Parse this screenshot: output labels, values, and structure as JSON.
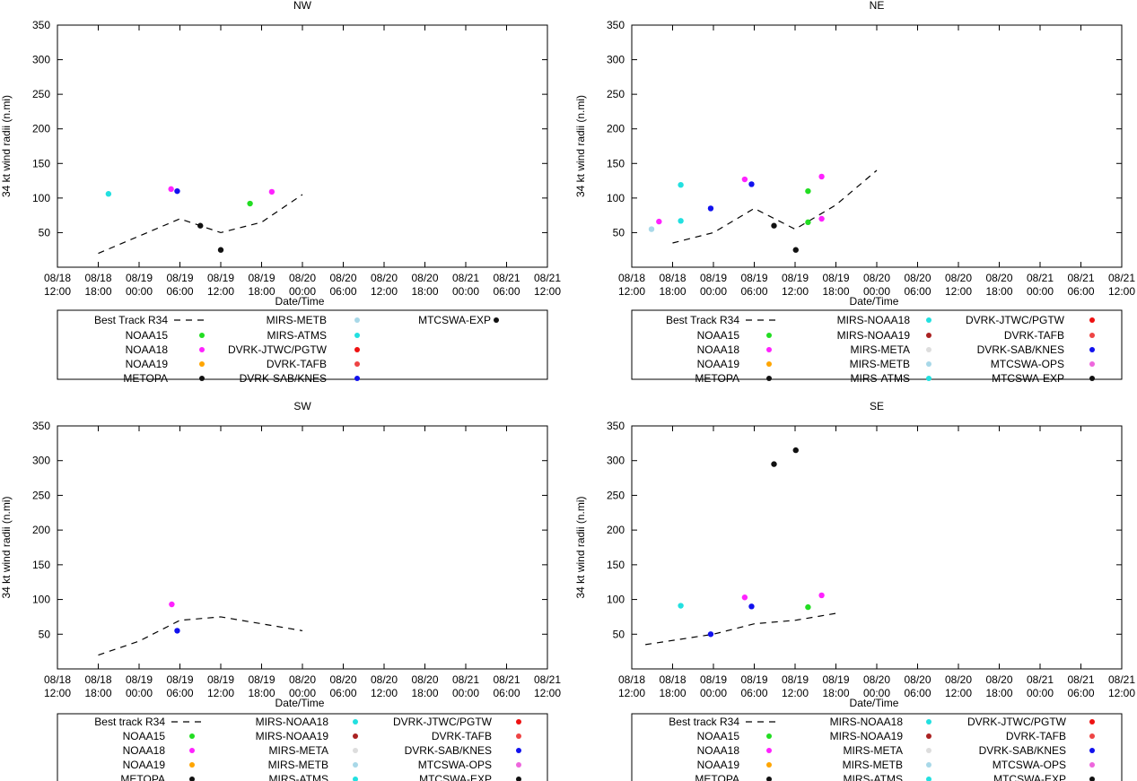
{
  "x_ticks": [
    "08/18\n12:00",
    "08/18\n18:00",
    "08/19\n00:00",
    "08/19\n06:00",
    "08/19\n12:00",
    "08/19\n18:00",
    "08/20\n00:00",
    "08/20\n06:00",
    "08/20\n12:00",
    "08/20\n18:00",
    "08/21\n00:00",
    "08/21\n06:00",
    "08/21\n12:00"
  ],
  "chart_data": [
    {
      "type": "scatter",
      "quadrant": "NW",
      "title": "NW",
      "xlabel": "Date/Time",
      "ylabel": "34 kt wind radii (n.mi)",
      "xunit": "hours after 08/18 12:00",
      "xlim": [
        0,
        72
      ],
      "ylim": [
        0,
        350
      ],
      "yticks": [
        50,
        100,
        150,
        200,
        250,
        300,
        350
      ],
      "best_track": {
        "name": "Best Track R34",
        "x": [
          6,
          18,
          24,
          30,
          36
        ],
        "y": [
          20,
          70,
          50,
          65,
          105
        ]
      },
      "series": [
        {
          "name": "NOAA15",
          "color": "#22dd22",
          "x": [
            28.3
          ],
          "y": [
            92
          ]
        },
        {
          "name": "NOAA18",
          "color": "#ff22ff",
          "x": [
            16.7,
            31.5
          ],
          "y": [
            113,
            109
          ]
        },
        {
          "name": "NOAA19",
          "color": "#ffa500",
          "x": [],
          "y": []
        },
        {
          "name": "METOPA",
          "color": "#111111",
          "x": [
            21,
            24
          ],
          "y": [
            60,
            25
          ]
        },
        {
          "name": "MIRS-METB",
          "color": "#a8d8e8",
          "x": [],
          "y": []
        },
        {
          "name": "MIRS-ATMS",
          "color": "#22e0e0",
          "x": [
            7.5
          ],
          "y": [
            106
          ]
        },
        {
          "name": "DVRK-JTWC/PGTW",
          "color": "#ee1111",
          "x": [],
          "y": []
        },
        {
          "name": "DVRK-TAFB",
          "color": "#ee4444",
          "x": [],
          "y": []
        },
        {
          "name": "DVRK-SAB/KNES",
          "color": "#1111ee",
          "x": [
            17.6
          ],
          "y": [
            110
          ]
        },
        {
          "name": "MTCSWA-EXP",
          "color": "#111111",
          "x": [],
          "y": []
        }
      ]
    },
    {
      "type": "scatter",
      "quadrant": "NE",
      "title": "NE",
      "xlabel": "Date/Time",
      "ylabel": "34 kt wind radii (n.mi)",
      "xunit": "hours after 08/18 12:00",
      "xlim": [
        0,
        72
      ],
      "ylim": [
        0,
        350
      ],
      "yticks": [
        50,
        100,
        150,
        200,
        250,
        300,
        350
      ],
      "best_track": {
        "name": "Best Track R34",
        "x": [
          6,
          12,
          18,
          24,
          30,
          36
        ],
        "y": [
          35,
          50,
          85,
          55,
          90,
          140
        ]
      },
      "series": [
        {
          "name": "NOAA15",
          "color": "#22dd22",
          "x": [
            25.9,
            25.9
          ],
          "y": [
            110,
            65
          ]
        },
        {
          "name": "NOAA18",
          "color": "#ff22ff",
          "x": [
            4.0,
            16.6,
            27.9,
            27.9
          ],
          "y": [
            66,
            127,
            131,
            70
          ]
        },
        {
          "name": "NOAA19",
          "color": "#ffa500",
          "x": [],
          "y": []
        },
        {
          "name": "METOPA",
          "color": "#111111",
          "x": [
            20.9,
            24.1
          ],
          "y": [
            60,
            25
          ]
        },
        {
          "name": "MIRS-NOAA18",
          "color": "#22e0e0",
          "x": [
            7.2,
            7.2
          ],
          "y": [
            119,
            67
          ]
        },
        {
          "name": "MIRS-NOAA19",
          "color": "#aa2222",
          "x": [],
          "y": []
        },
        {
          "name": "MIRS-META",
          "color": "#dddddd",
          "x": [],
          "y": []
        },
        {
          "name": "MIRS-METB",
          "color": "#a8d8e8",
          "x": [
            2.9
          ],
          "y": [
            55
          ]
        },
        {
          "name": "MIRS-ATMS",
          "color": "#22e0e0",
          "x": [],
          "y": []
        },
        {
          "name": "DVRK-JTWC/PGTW",
          "color": "#ee1111",
          "x": [],
          "y": []
        },
        {
          "name": "DVRK-TAFB",
          "color": "#ee4444",
          "x": [],
          "y": []
        },
        {
          "name": "DVRK-SAB/KNES",
          "color": "#1111ee",
          "x": [
            11.6,
            17.6
          ],
          "y": [
            85,
            120
          ]
        },
        {
          "name": "MTCSWA-OPS",
          "color": "#ee66dd",
          "x": [],
          "y": []
        },
        {
          "name": "MTCSWA-EXP",
          "color": "#111111",
          "x": [],
          "y": []
        }
      ]
    },
    {
      "type": "scatter",
      "quadrant": "SW",
      "title": "SW",
      "xlabel": "Date/Time",
      "ylabel": "34 kt wind radii (n.mi)",
      "xunit": "hours after 08/18 12:00",
      "xlim": [
        0,
        72
      ],
      "ylim": [
        0,
        350
      ],
      "yticks": [
        50,
        100,
        150,
        200,
        250,
        300,
        350
      ],
      "best_track": {
        "name": "Best track R34",
        "x": [
          6,
          12,
          18,
          24,
          30,
          36
        ],
        "y": [
          20,
          40,
          70,
          75,
          65,
          55
        ]
      },
      "series": [
        {
          "name": "NOAA15",
          "color": "#22dd22",
          "x": [],
          "y": []
        },
        {
          "name": "NOAA18",
          "color": "#ff22ff",
          "x": [
            16.8
          ],
          "y": [
            93
          ]
        },
        {
          "name": "NOAA19",
          "color": "#ffa500",
          "x": [],
          "y": []
        },
        {
          "name": "METOPA",
          "color": "#111111",
          "x": [],
          "y": []
        },
        {
          "name": "MIRS-NOAA18",
          "color": "#22e0e0",
          "x": [],
          "y": []
        },
        {
          "name": "MIRS-NOAA19",
          "color": "#aa2222",
          "x": [],
          "y": []
        },
        {
          "name": "MIRS-META",
          "color": "#dddddd",
          "x": [],
          "y": []
        },
        {
          "name": "MIRS-METB",
          "color": "#a8d8e8",
          "x": [],
          "y": []
        },
        {
          "name": "MIRS-ATMS",
          "color": "#22e0e0",
          "x": [],
          "y": []
        },
        {
          "name": "DVRK-JTWC/PGTW",
          "color": "#ee1111",
          "x": [],
          "y": []
        },
        {
          "name": "DVRK-TAFB",
          "color": "#ee4444",
          "x": [],
          "y": []
        },
        {
          "name": "DVRK-SAB/KNES",
          "color": "#1111ee",
          "x": [
            17.6
          ],
          "y": [
            55
          ]
        },
        {
          "name": "MTCSWA-OPS",
          "color": "#ee66dd",
          "x": [],
          "y": []
        },
        {
          "name": "MTCSWA-EXP",
          "color": "#111111",
          "x": [],
          "y": []
        }
      ]
    },
    {
      "type": "scatter",
      "quadrant": "SE",
      "title": "SE",
      "xlabel": "Date/Time",
      "ylabel": "34 kt wind radii (n.mi)",
      "xunit": "hours after 08/18 12:00",
      "xlim": [
        0,
        72
      ],
      "ylim": [
        0,
        350
      ],
      "yticks": [
        50,
        100,
        150,
        200,
        250,
        300,
        350
      ],
      "best_track": {
        "name": "Best track R34",
        "x": [
          2,
          12,
          18,
          24,
          30
        ],
        "y": [
          35,
          50,
          65,
          70,
          80
        ]
      },
      "series": [
        {
          "name": "NOAA15",
          "color": "#22dd22",
          "x": [
            25.9
          ],
          "y": [
            89
          ]
        },
        {
          "name": "NOAA18",
          "color": "#ff22ff",
          "x": [
            16.6,
            27.9
          ],
          "y": [
            103,
            106
          ]
        },
        {
          "name": "NOAA19",
          "color": "#ffa500",
          "x": [],
          "y": []
        },
        {
          "name": "METOPA",
          "color": "#111111",
          "x": [
            20.9,
            24.1
          ],
          "y": [
            295,
            315
          ]
        },
        {
          "name": "MIRS-NOAA18",
          "color": "#22e0e0",
          "x": [
            7.2
          ],
          "y": [
            91
          ]
        },
        {
          "name": "MIRS-NOAA19",
          "color": "#aa2222",
          "x": [],
          "y": []
        },
        {
          "name": "MIRS-META",
          "color": "#dddddd",
          "x": [],
          "y": []
        },
        {
          "name": "MIRS-METB",
          "color": "#a8d8e8",
          "x": [],
          "y": []
        },
        {
          "name": "MIRS-ATMS",
          "color": "#22e0e0",
          "x": [],
          "y": []
        },
        {
          "name": "DVRK-JTWC/PGTW",
          "color": "#ee1111",
          "x": [],
          "y": []
        },
        {
          "name": "DVRK-TAFB",
          "color": "#ee4444",
          "x": [],
          "y": []
        },
        {
          "name": "DVRK-SAB/KNES",
          "color": "#1111ee",
          "x": [
            11.6,
            17.6
          ],
          "y": [
            50,
            90
          ]
        },
        {
          "name": "MTCSWA-OPS",
          "color": "#ee66dd",
          "x": [],
          "y": []
        },
        {
          "name": "MTCSWA-EXP",
          "color": "#111111",
          "x": [],
          "y": []
        }
      ]
    }
  ]
}
